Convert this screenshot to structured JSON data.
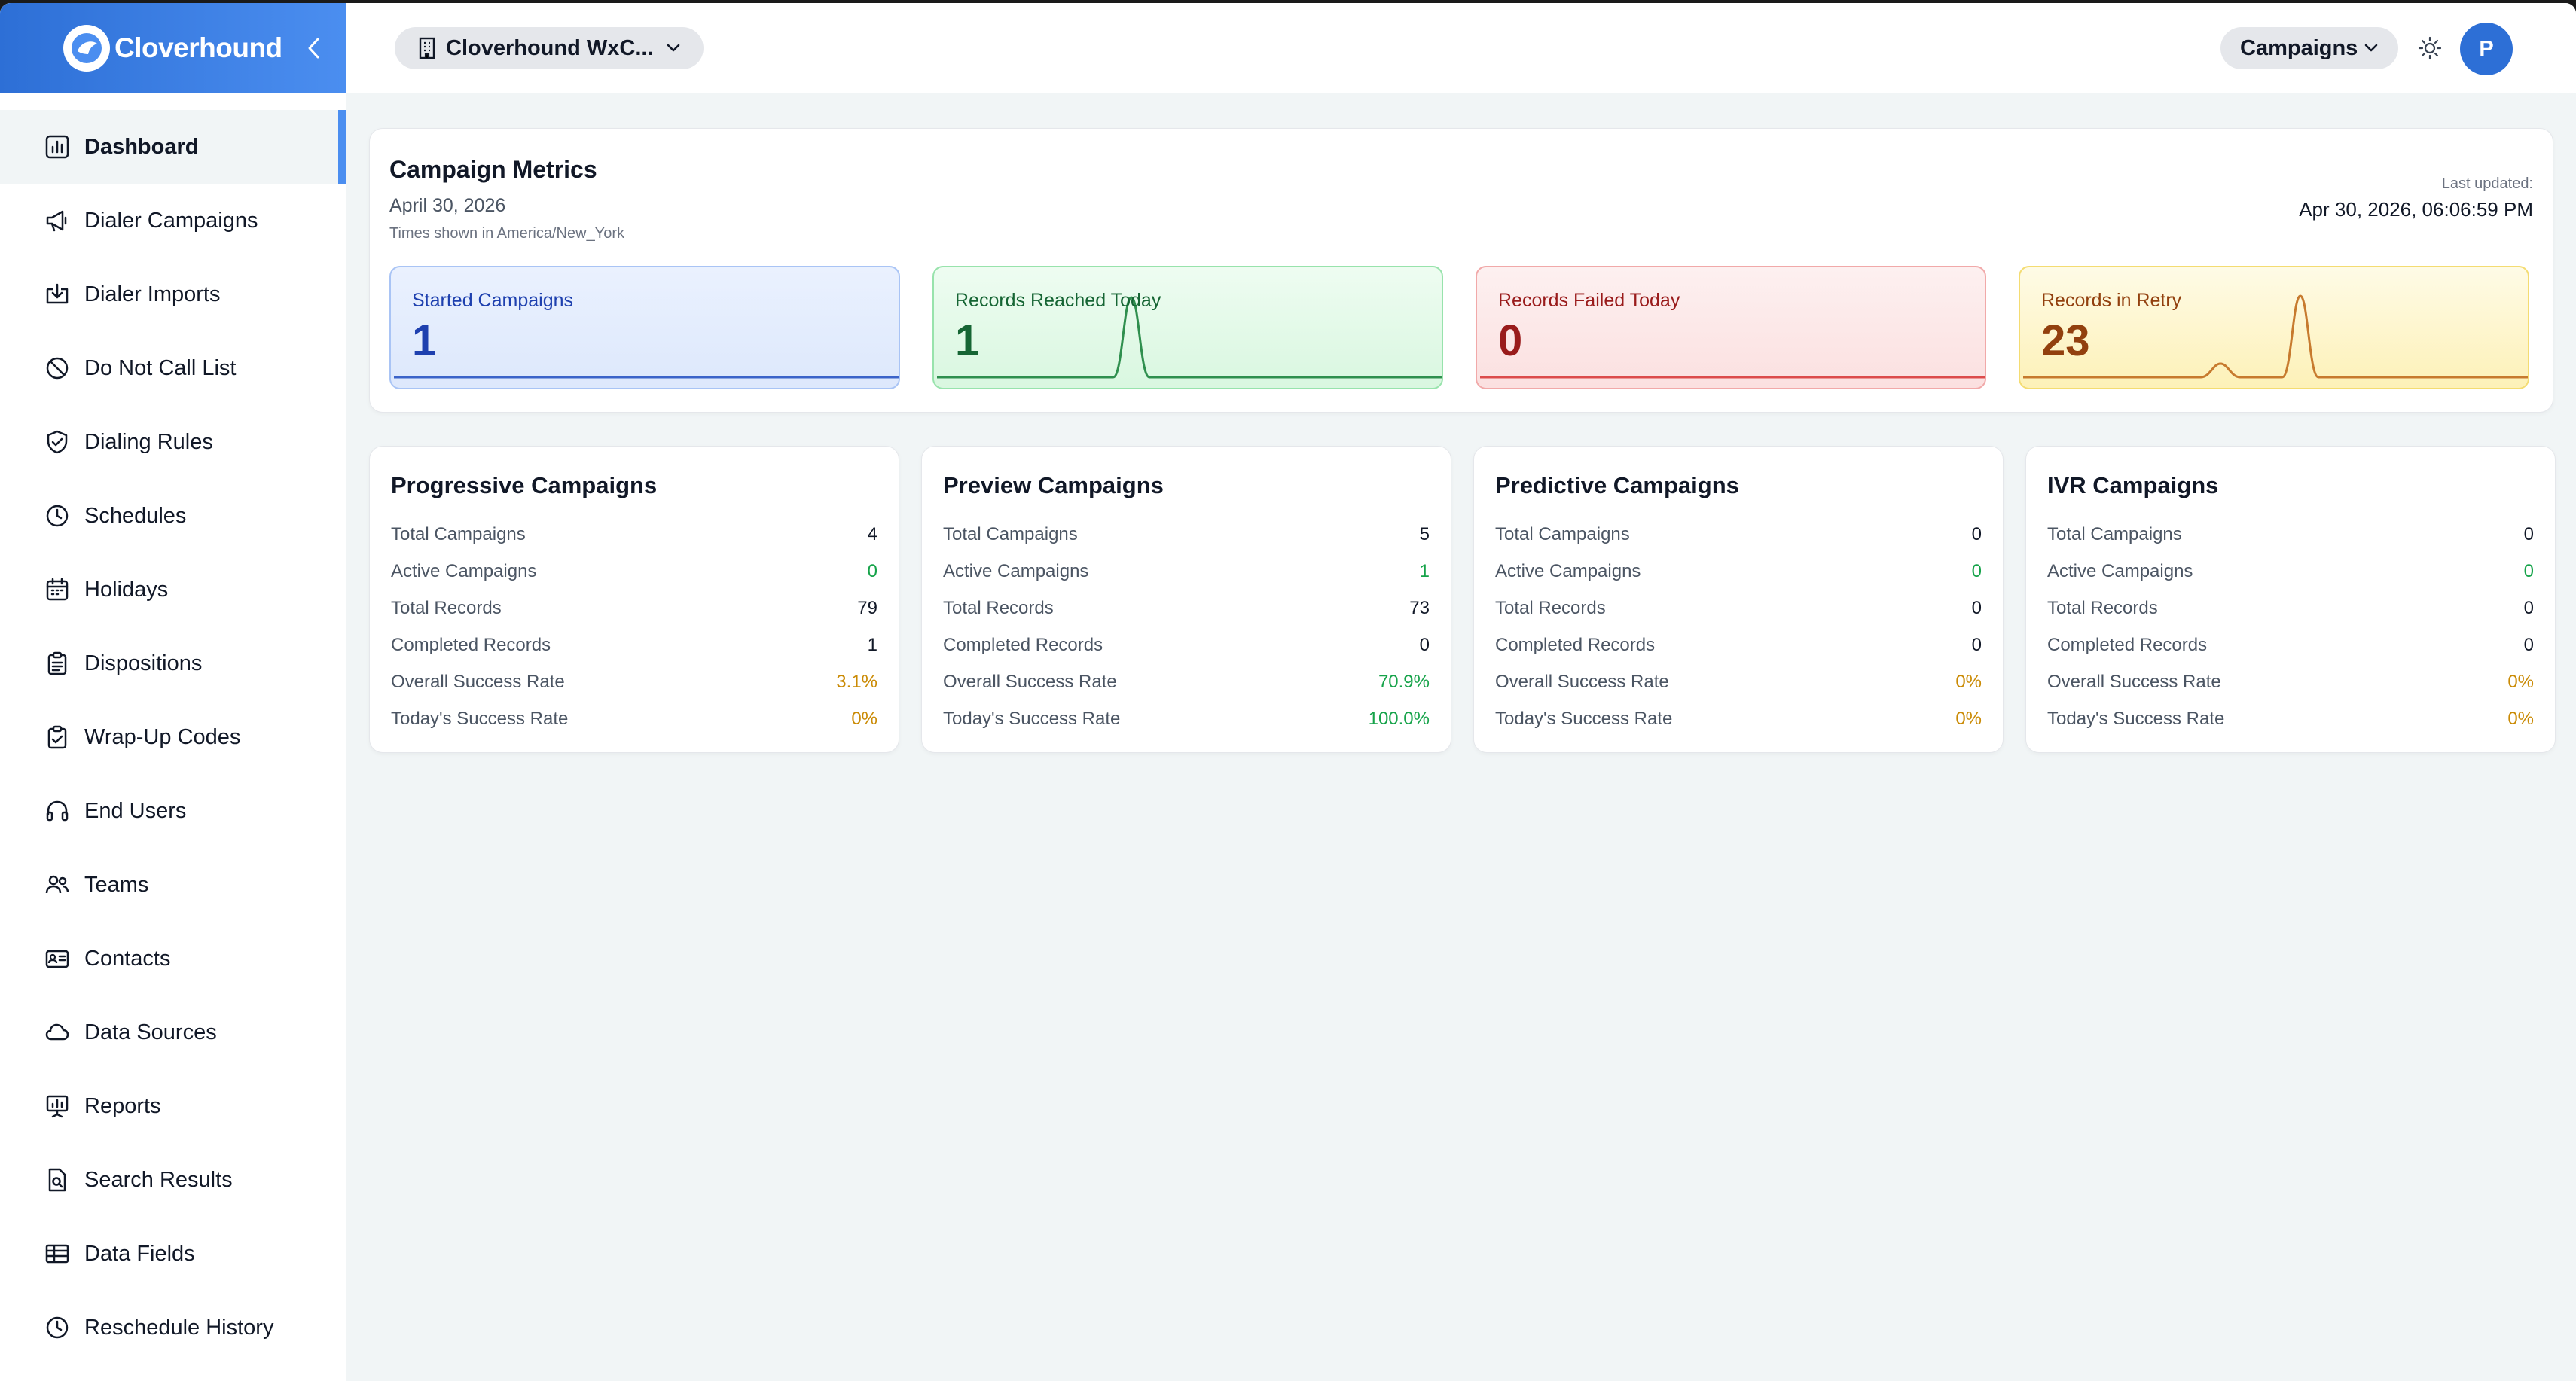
{
  "brand": {
    "name": "Cloverhound"
  },
  "sidebar": {
    "items": [
      {
        "label": "Dashboard",
        "icon": "bar-chart-icon",
        "active": true
      },
      {
        "label": "Dialer Campaigns",
        "icon": "megaphone-icon"
      },
      {
        "label": "Dialer Imports",
        "icon": "import-icon"
      },
      {
        "label": "Do Not Call List",
        "icon": "ban-icon"
      },
      {
        "label": "Dialing Rules",
        "icon": "shield-check-icon"
      },
      {
        "label": "Schedules",
        "icon": "clock-icon"
      },
      {
        "label": "Holidays",
        "icon": "calendar-icon"
      },
      {
        "label": "Dispositions",
        "icon": "clipboard-list-icon"
      },
      {
        "label": "Wrap-Up Codes",
        "icon": "clipboard-check-icon"
      },
      {
        "label": "End Users",
        "icon": "headset-icon"
      },
      {
        "label": "Teams",
        "icon": "users-icon"
      },
      {
        "label": "Contacts",
        "icon": "contact-card-icon"
      },
      {
        "label": "Data Sources",
        "icon": "cloud-icon"
      },
      {
        "label": "Reports",
        "icon": "presentation-chart-icon"
      },
      {
        "label": "Search Results",
        "icon": "file-search-icon"
      },
      {
        "label": "Data Fields",
        "icon": "table-icon"
      },
      {
        "label": "Reschedule History",
        "icon": "history-clock-icon"
      }
    ]
  },
  "topbar": {
    "org_label": "Cloverhound WxC...",
    "campaigns_label": "Campaigns",
    "avatar_initial": "P"
  },
  "metrics": {
    "title": "Campaign Metrics",
    "date": "April 30, 2026",
    "timezone_note": "Times shown in America/New_York",
    "last_updated_label": "Last updated:",
    "last_updated": "Apr 30, 2026, 06:06:59 PM",
    "stats": [
      {
        "label": "Started Campaigns",
        "value": "1",
        "color": "#1e40af"
      },
      {
        "label": "Records Reached Today",
        "value": "1",
        "color": "#166534"
      },
      {
        "label": "Records Failed Today",
        "value": "0",
        "color": "#991b1b"
      },
      {
        "label": "Records in Retry",
        "value": "23",
        "color": "#92400e"
      }
    ]
  },
  "campaign_types": [
    {
      "title": "Progressive Campaigns",
      "rows": [
        {
          "label": "Total Campaigns",
          "value": "4"
        },
        {
          "label": "Active Campaigns",
          "value": "0"
        },
        {
          "label": "Total Records",
          "value": "79"
        },
        {
          "label": "Completed Records",
          "value": "1"
        },
        {
          "label": "Overall Success Rate",
          "value": "3.1%"
        },
        {
          "label": "Today's Success Rate",
          "value": "0%"
        }
      ]
    },
    {
      "title": "Preview Campaigns",
      "rows": [
        {
          "label": "Total Campaigns",
          "value": "5"
        },
        {
          "label": "Active Campaigns",
          "value": "1"
        },
        {
          "label": "Total Records",
          "value": "73"
        },
        {
          "label": "Completed Records",
          "value": "0"
        },
        {
          "label": "Overall Success Rate",
          "value": "70.9%"
        },
        {
          "label": "Today's Success Rate",
          "value": "100.0%"
        }
      ]
    },
    {
      "title": "Predictive Campaigns",
      "rows": [
        {
          "label": "Total Campaigns",
          "value": "0"
        },
        {
          "label": "Active Campaigns",
          "value": "0"
        },
        {
          "label": "Total Records",
          "value": "0"
        },
        {
          "label": "Completed Records",
          "value": "0"
        },
        {
          "label": "Overall Success Rate",
          "value": "0%"
        },
        {
          "label": "Today's Success Rate",
          "value": "0%"
        }
      ]
    },
    {
      "title": "IVR Campaigns",
      "rows": [
        {
          "label": "Total Campaigns",
          "value": "0"
        },
        {
          "label": "Active Campaigns",
          "value": "0"
        },
        {
          "label": "Total Records",
          "value": "0"
        },
        {
          "label": "Completed Records",
          "value": "0"
        },
        {
          "label": "Overall Success Rate",
          "value": "0%"
        },
        {
          "label": "Today's Success Rate",
          "value": "0%"
        }
      ]
    }
  ],
  "colors": {
    "accent": "#4b8ef0",
    "active_value": "#16a34a",
    "rate_value": "#ca8a04"
  }
}
